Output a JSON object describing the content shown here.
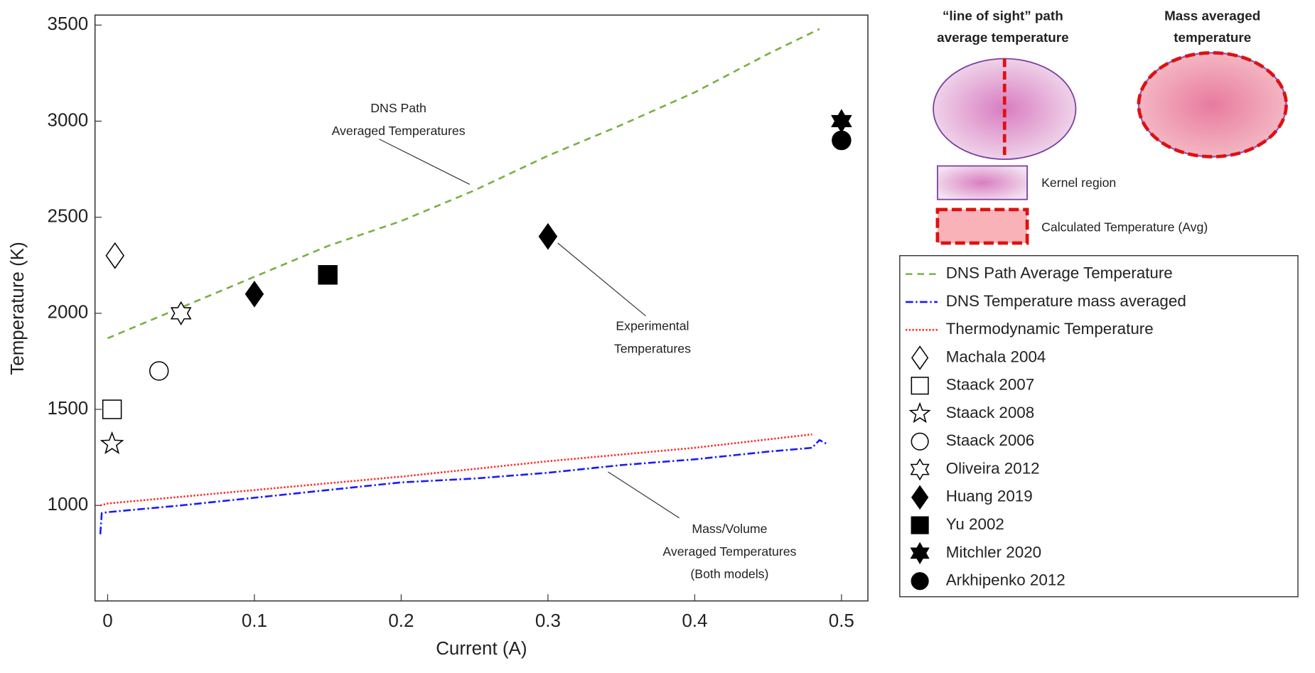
{
  "chart_data": {
    "type": "line",
    "xlabel": "Current (A)",
    "ylabel": "Temperature (K)",
    "xlim": [
      -0.0086,
      0.518
    ],
    "ylim": [
      503,
      3552
    ],
    "xticks": [
      0,
      0.1,
      0.2,
      0.3,
      0.4,
      0.5
    ],
    "yticks": [
      1000,
      1500,
      2000,
      2500,
      3000,
      3500
    ],
    "annotations": [
      {
        "lines": [
          "DNS Path",
          "Averaged Temperatures"
        ]
      },
      {
        "lines": [
          "Experimental",
          "Temperatures"
        ]
      },
      {
        "lines": [
          "Mass/Volume",
          "Averaged Temperatures",
          "(Both models)"
        ]
      }
    ],
    "series": [
      {
        "name": "DNS Path Average Temperature",
        "color": "#77b041",
        "dash": "8 6",
        "x": [
          0,
          0.05,
          0.1,
          0.15,
          0.2,
          0.25,
          0.3,
          0.35,
          0.4,
          0.45,
          0.485
        ],
        "values": [
          1870,
          2030,
          2190,
          2350,
          2480,
          2640,
          2820,
          2980,
          3150,
          3350,
          3480
        ]
      },
      {
        "name": "DNS Temperature mass averaged",
        "color": "#1a1aff",
        "dash": "9 3 2 3",
        "x": [
          -0.005,
          -0.004,
          0,
          0.05,
          0.1,
          0.15,
          0.2,
          0.25,
          0.3,
          0.35,
          0.4,
          0.45,
          0.48,
          0.485,
          0.49
        ],
        "values": [
          850,
          960,
          965,
          1000,
          1040,
          1080,
          1120,
          1140,
          1170,
          1210,
          1240,
          1280,
          1300,
          1340,
          1320
        ]
      },
      {
        "name": "Thermodynamic Temperature",
        "color": "#ff2a2a",
        "dash": "2 2",
        "x": [
          -0.005,
          0,
          0.1,
          0.2,
          0.3,
          0.4,
          0.48
        ],
        "values": [
          1000,
          1010,
          1080,
          1150,
          1230,
          1300,
          1370
        ]
      },
      {
        "name": "Machala 2004",
        "color": "#000000",
        "marker": "diamond",
        "filled": false,
        "x": [
          0.005
        ],
        "values": [
          2300
        ]
      },
      {
        "name": "Staack 2007",
        "color": "#000000",
        "marker": "square",
        "filled": false,
        "x": [
          0.003
        ],
        "values": [
          1500
        ]
      },
      {
        "name": "Staack 2008",
        "color": "#000000",
        "marker": "star",
        "filled": false,
        "x": [
          0.003
        ],
        "values": [
          1320
        ]
      },
      {
        "name": "Staack 2006",
        "color": "#000000",
        "marker": "circle",
        "filled": false,
        "x": [
          0.035
        ],
        "values": [
          1700
        ]
      },
      {
        "name": "Oliveira 2012",
        "color": "#000000",
        "marker": "hexagram",
        "filled": false,
        "x": [
          0.05
        ],
        "values": [
          2000
        ]
      },
      {
        "name": "Huang 2019",
        "color": "#000000",
        "marker": "diamond",
        "filled": true,
        "x": [
          0.1,
          0.3
        ],
        "values": [
          2100,
          2400
        ]
      },
      {
        "name": "Yu 2002",
        "color": "#000000",
        "marker": "square",
        "filled": true,
        "x": [
          0.15
        ],
        "values": [
          2200
        ]
      },
      {
        "name": "Mitchler 2020",
        "color": "#000000",
        "marker": "hexagram",
        "filled": true,
        "x": [
          0.5
        ],
        "values": [
          3000
        ]
      },
      {
        "name": "Arkhipenko 2012",
        "color": "#000000",
        "marker": "circle",
        "filled": true,
        "x": [
          0.5
        ],
        "values": [
          2900
        ]
      }
    ]
  },
  "diagram": {
    "left_title": [
      "“line of sight” path",
      "average temperature"
    ],
    "right_title": [
      "Mass averaged",
      "temperature"
    ],
    "kernel_label": "Kernel region",
    "calc_label": "Calculated Temperature (Avg)"
  }
}
